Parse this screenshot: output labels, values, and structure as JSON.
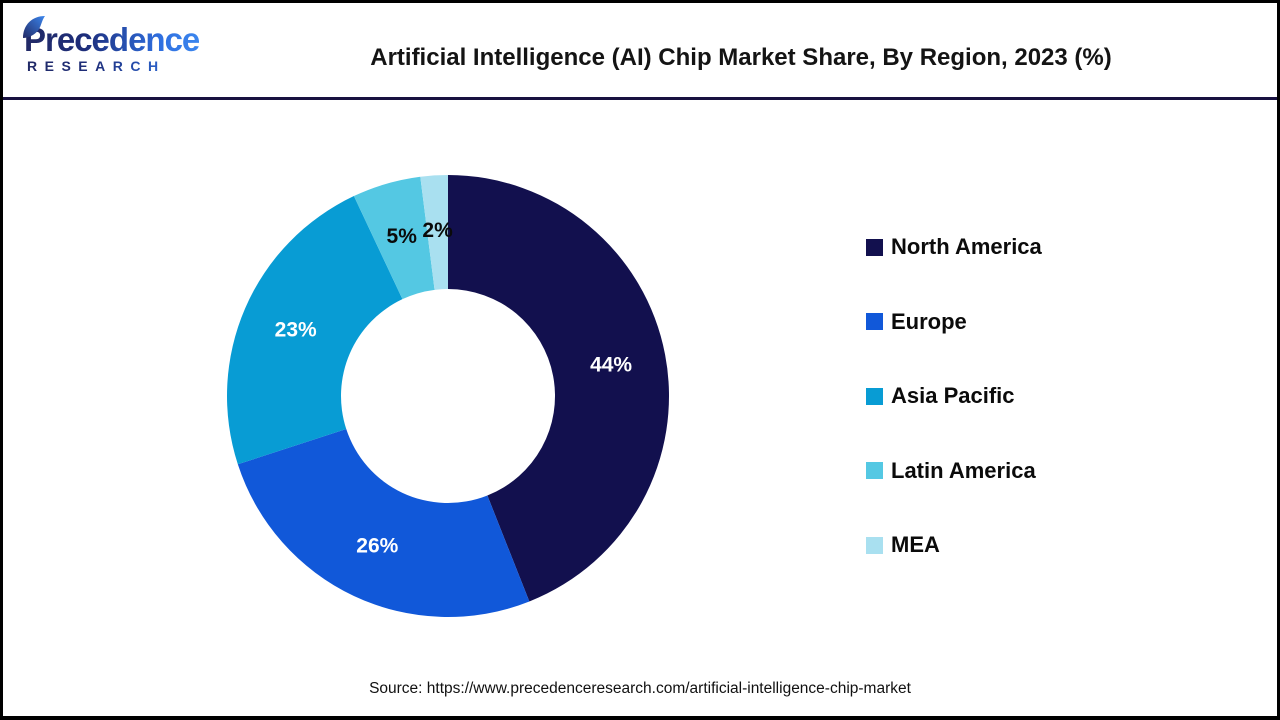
{
  "header": {
    "logo": {
      "brand": "Precedence",
      "subtitle": "RESEARCH"
    },
    "title": "Artificial Intelligence (AI) Chip Market Share, By Region, 2023 (%)"
  },
  "chart_data": {
    "type": "pie",
    "subtype": "donut",
    "title": "Artificial Intelligence (AI) Chip Market Share, By Region, 2023 (%)",
    "unit": "%",
    "start_angle_deg": 0,
    "direction": "clockwise",
    "inner_radius_ratio": 0.48,
    "legend_position": "right",
    "categories": [
      "North America",
      "Europe",
      "Asia Pacific",
      "Latin America",
      "MEA"
    ],
    "values": [
      44,
      26,
      23,
      5,
      2
    ],
    "slices": [
      {
        "label": "North America",
        "value": 44,
        "color": "#12104E",
        "label_color": "#FFFFFF"
      },
      {
        "label": "Europe",
        "value": 26,
        "color": "#1158D9",
        "label_color": "#FFFFFF"
      },
      {
        "label": "Asia Pacific",
        "value": 23,
        "color": "#089CD4",
        "label_color": "#FFFFFF"
      },
      {
        "label": "Latin America",
        "value": 5,
        "color": "#54C8E3",
        "label_color": "#0A0A0A"
      },
      {
        "label": "MEA",
        "value": 2,
        "color": "#A9E0F0",
        "label_color": "#0A0A0A"
      }
    ]
  },
  "footer": {
    "source": "Source: https://www.precedenceresearch.com/artificial-intelligence-chip-market"
  },
  "colors": {
    "frame_border": "#000000",
    "header_rule": "#181140",
    "background": "#FFFFFF",
    "title_text": "#141414",
    "legend_text": "#0B0B0B"
  }
}
